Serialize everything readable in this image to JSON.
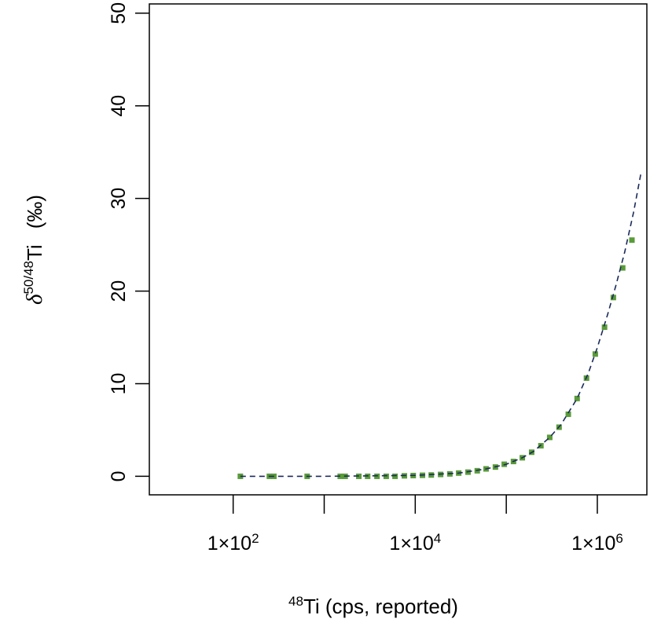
{
  "chart_data": {
    "type": "scatter",
    "xscale": "log",
    "xlim": [
      12,
      3500000
    ],
    "ylim": [
      -2,
      51
    ],
    "grid": false,
    "xlabel": {
      "sup": "48",
      "main": "Ti (cps, reported)"
    },
    "ylabel": {
      "delta": "δ",
      "sup": "50/48",
      "main": "Ti",
      "unit": "(‰)"
    },
    "x_ticks": [
      {
        "value": 100,
        "label_base": "1×10",
        "label_exp": "2"
      },
      {
        "value": 1000,
        "label_base": "",
        "label_exp": ""
      },
      {
        "value": 10000,
        "label_base": "1×10",
        "label_exp": "4"
      },
      {
        "value": 100000,
        "label_base": "",
        "label_exp": ""
      },
      {
        "value": 1000000,
        "label_base": "1×10",
        "label_exp": "6"
      }
    ],
    "y_ticks": [
      {
        "value": 0,
        "label": "0"
      },
      {
        "value": 10,
        "label": "10"
      },
      {
        "value": 20,
        "label": "20"
      },
      {
        "value": 30,
        "label": "30"
      },
      {
        "value": 40,
        "label": "40"
      },
      {
        "value": 50,
        "label": "50"
      }
    ],
    "series": [
      {
        "kind": "points",
        "color": "#5a9a3a",
        "marker": "square",
        "x": [
          120,
          250,
          280,
          650,
          1500,
          1700,
          2400,
          3000,
          3800,
          4800,
          6000,
          7600,
          9500,
          12000,
          15000,
          19000,
          24000,
          30000,
          38000,
          48000,
          60000,
          76000,
          95000,
          120000,
          150000,
          190000,
          240000,
          300000,
          380000,
          480000,
          600000,
          760000,
          950000,
          1200000,
          1500000,
          1900000,
          2400000
        ],
        "y": [
          0.0,
          0.0,
          0.0,
          0.0,
          0.0,
          0.0,
          0.0,
          0.0,
          0.0,
          0.0,
          0.0,
          0.05,
          0.08,
          0.11,
          0.14,
          0.2,
          0.26,
          0.35,
          0.45,
          0.6,
          0.8,
          1.0,
          1.3,
          1.6,
          2.0,
          2.6,
          3.3,
          4.2,
          5.3,
          6.7,
          8.4,
          10.6,
          13.2,
          16.1,
          19.3,
          22.5,
          25.5
        ]
      },
      {
        "kind": "dashed-line",
        "color": "#1a2a5a",
        "x": [
          120,
          1000,
          10000,
          30000,
          60000,
          100000,
          150000,
          200000,
          300000,
          400000,
          600000,
          800000,
          1000000,
          1300000,
          1600000,
          2000000,
          2500000,
          3000000
        ],
        "y": [
          0.0,
          0.0,
          0.1,
          0.35,
          0.8,
          1.3,
          2.0,
          2.7,
          4.2,
          5.6,
          8.4,
          11.2,
          13.9,
          17.5,
          20.6,
          24.2,
          28.5,
          32.6
        ]
      }
    ]
  }
}
